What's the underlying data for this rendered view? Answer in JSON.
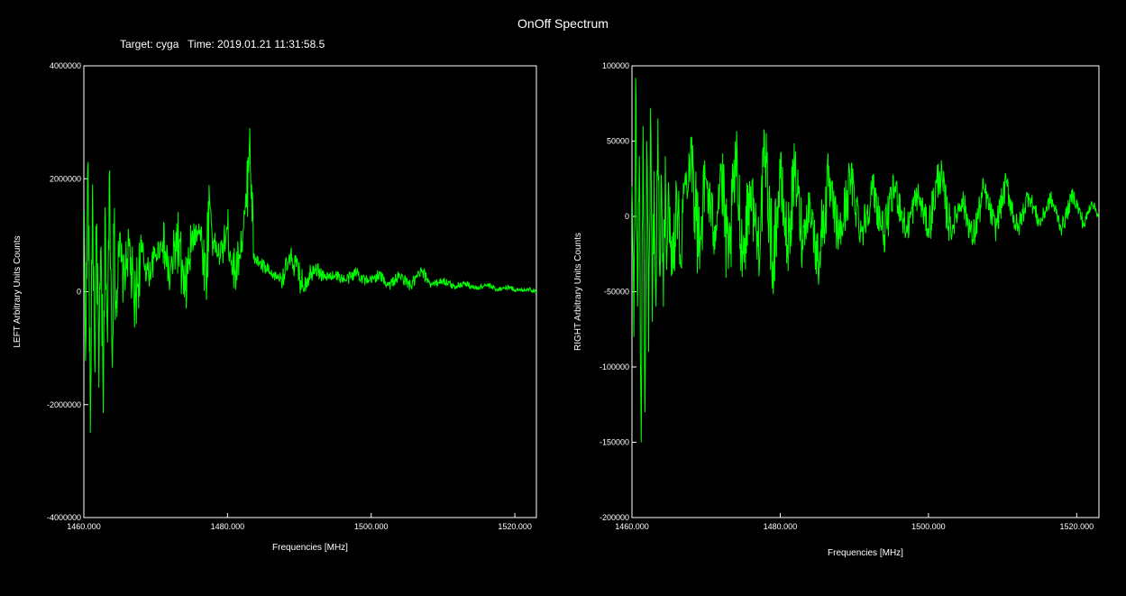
{
  "title": "OnOff Spectrum",
  "subtitle": "Target: cyga   Time: 2019.01.21 11:31:58.5",
  "colors": {
    "background": "#000000",
    "axes": "#ffffff",
    "trace": "#00ff00"
  },
  "chart_data": [
    {
      "type": "line",
      "ylabel": "LEFT  Arbitrary Units Counts",
      "xlabel": "Frequencies [MHz]",
      "xlim": [
        1460.0,
        1523.0
      ],
      "ylim": [
        -4000000,
        4000000
      ],
      "xticks": [
        "1460.000",
        "1480.000",
        "1500.000",
        "1520.000"
      ],
      "xtick_values": [
        1460,
        1480,
        1500,
        1520
      ],
      "yticks": [
        "4000000",
        "2000000",
        "0",
        "-2000000",
        "-4000000"
      ],
      "ytick_values": [
        4000000,
        2000000,
        0,
        -2000000,
        -4000000
      ],
      "series": [
        {
          "x": [
            1460.0,
            1460.3,
            1460.6,
            1460.9,
            1461.2,
            1461.5,
            1461.8,
            1462.1,
            1462.4,
            1462.7,
            1463.0,
            1463.3,
            1463.6,
            1463.9,
            1464.2,
            1464.5,
            1464.8,
            1465.5,
            1466.3,
            1467.0,
            1468.0,
            1469.0,
            1470.0,
            1471.0,
            1472.0,
            1473.0,
            1474.0,
            1475.0,
            1476.0,
            1477.0,
            1477.5,
            1478.0,
            1479.0,
            1480.0,
            1481.0,
            1482.0,
            1482.6,
            1483.1,
            1483.6,
            1484.5,
            1486.0,
            1487.5,
            1489.0,
            1490.5,
            1492.0,
            1493.5,
            1495.0,
            1496.5,
            1498.0,
            1499.5,
            1501.0,
            1502.5,
            1504.0,
            1505.5,
            1507.0,
            1508.5,
            1510.0,
            1511.5,
            1513.0,
            1514.5,
            1516.0,
            1517.5,
            1519.0,
            1520.5,
            1522.0,
            1523.0
          ],
          "y": [
            1400000,
            -800000,
            2300000,
            -2500000,
            1900000,
            -1200000,
            1200000,
            -1700000,
            800000,
            -2150000,
            1300000,
            -900000,
            2150000,
            -1000000,
            1000000,
            -300000,
            900000,
            200000,
            800000,
            -300000,
            700000,
            300000,
            650000,
            900000,
            200000,
            1000000,
            -100000,
            850000,
            1200000,
            300000,
            1650000,
            900000,
            600000,
            1100000,
            300000,
            900000,
            1500000,
            2900000,
            600000,
            500000,
            300000,
            250000,
            600000,
            100000,
            450000,
            250000,
            300000,
            200000,
            350000,
            150000,
            300000,
            120000,
            280000,
            100000,
            350000,
            130000,
            200000,
            90000,
            150000,
            60000,
            120000,
            40000,
            80000,
            20000,
            50000,
            0
          ]
        }
      ]
    },
    {
      "type": "line",
      "ylabel": "RIGHT  Arbitrary Units Counts",
      "xlabel": "Frequencies [MHz]",
      "xlim": [
        1460.0,
        1523.0
      ],
      "ylim": [
        -200000,
        100000
      ],
      "xticks": [
        "1460.000",
        "1480.000",
        "1500.000",
        "1520.000"
      ],
      "xtick_values": [
        1460,
        1480,
        1500,
        1520
      ],
      "yticks": [
        "100000",
        "50000",
        "0",
        "-50000",
        "-100000",
        "-150000",
        "-200000"
      ],
      "ytick_values": [
        100000,
        50000,
        0,
        -50000,
        -100000,
        -150000,
        -200000
      ],
      "series": [
        {
          "x": [
            1460.0,
            1460.25,
            1460.5,
            1460.75,
            1461.0,
            1461.25,
            1461.5,
            1461.75,
            1462.0,
            1462.25,
            1462.5,
            1462.75,
            1463.0,
            1463.25,
            1463.5,
            1463.75,
            1464.0,
            1464.25,
            1464.5,
            1464.75,
            1465.0,
            1465.5,
            1466.0,
            1466.5,
            1467.0,
            1468.0,
            1469.0,
            1470.0,
            1471.0,
            1472.0,
            1473.0,
            1474.0,
            1475.0,
            1476.0,
            1477.0,
            1478.0,
            1479.0,
            1480.0,
            1481.0,
            1482.0,
            1483.0,
            1484.0,
            1485.0,
            1486.5,
            1488.0,
            1489.5,
            1491.0,
            1492.5,
            1494.0,
            1495.5,
            1497.0,
            1498.5,
            1500.0,
            1501.5,
            1503.0,
            1504.5,
            1506.0,
            1507.5,
            1509.0,
            1510.5,
            1512.0,
            1513.5,
            1515.0,
            1516.5,
            1518.0,
            1519.5,
            1521.0,
            1522.0,
            1523.0
          ],
          "y": [
            20000,
            -80000,
            92000,
            -60000,
            40000,
            -150000,
            60000,
            -130000,
            50000,
            -90000,
            72000,
            -70000,
            30000,
            -60000,
            65000,
            -40000,
            20000,
            -60000,
            40000,
            -20000,
            10000,
            -30000,
            20000,
            -25000,
            15000,
            45000,
            -20000,
            25000,
            -10000,
            30000,
            -35000,
            35000,
            -25000,
            20000,
            -20000,
            40000,
            -30000,
            25000,
            -20000,
            30000,
            -15000,
            10000,
            -30000,
            20000,
            -15000,
            25000,
            -10000,
            18000,
            -12000,
            20000,
            -10000,
            15000,
            -8000,
            30000,
            -10000,
            12000,
            -15000,
            18000,
            -8000,
            22000,
            -10000,
            15000,
            -5000,
            12000,
            -8000,
            15000,
            -6000,
            10000,
            0
          ]
        }
      ]
    }
  ]
}
